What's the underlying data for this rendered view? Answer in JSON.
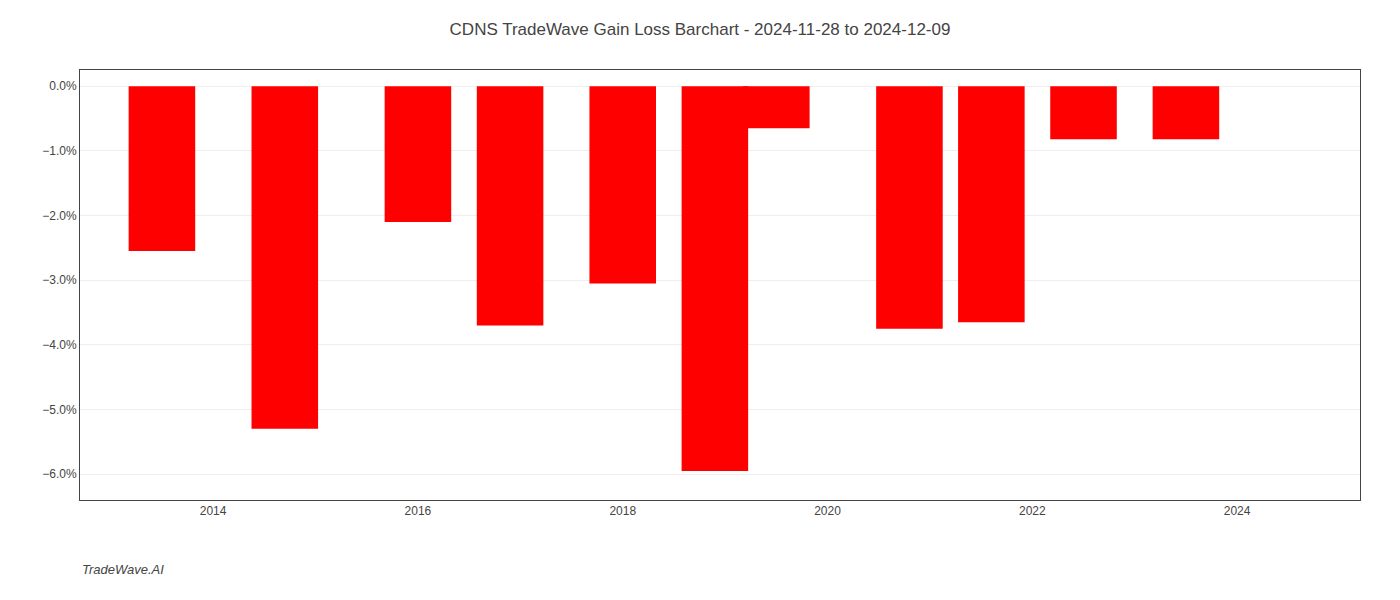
{
  "chart_data": {
    "type": "bar",
    "title": "CDNS TradeWave Gain Loss Barchart - 2024-11-28 to 2024-12-09",
    "annotations": [
      "TradeWave.AI"
    ],
    "x": [
      2013.5,
      2014.7,
      2016.0,
      2016.9,
      2018.0,
      2018.9,
      2019.5,
      2020.8,
      2021.6,
      2022.5,
      2023.5
    ],
    "values": [
      -2.55,
      -5.3,
      -2.1,
      -3.7,
      -3.05,
      -5.95,
      -0.65,
      -3.75,
      -3.65,
      -0.82,
      -0.82
    ],
    "color": "#ff0000",
    "xlim": [
      2012.7,
      2025.2
    ],
    "xticks": [
      2014,
      2016,
      2018,
      2020,
      2022,
      2024
    ],
    "ylim": [
      -6.4,
      0.25
    ],
    "yticks": [
      {
        "value": 0.0,
        "label": "0.0%"
      },
      {
        "value": -1.0,
        "label": "−1.0%"
      },
      {
        "value": -2.0,
        "label": "−2.0%"
      },
      {
        "value": -3.0,
        "label": "−3.0%"
      },
      {
        "value": -4.0,
        "label": "−4.0%"
      },
      {
        "value": -5.0,
        "label": "−5.0%"
      },
      {
        "value": -6.0,
        "label": "−6.0%"
      }
    ],
    "grid": "y"
  }
}
